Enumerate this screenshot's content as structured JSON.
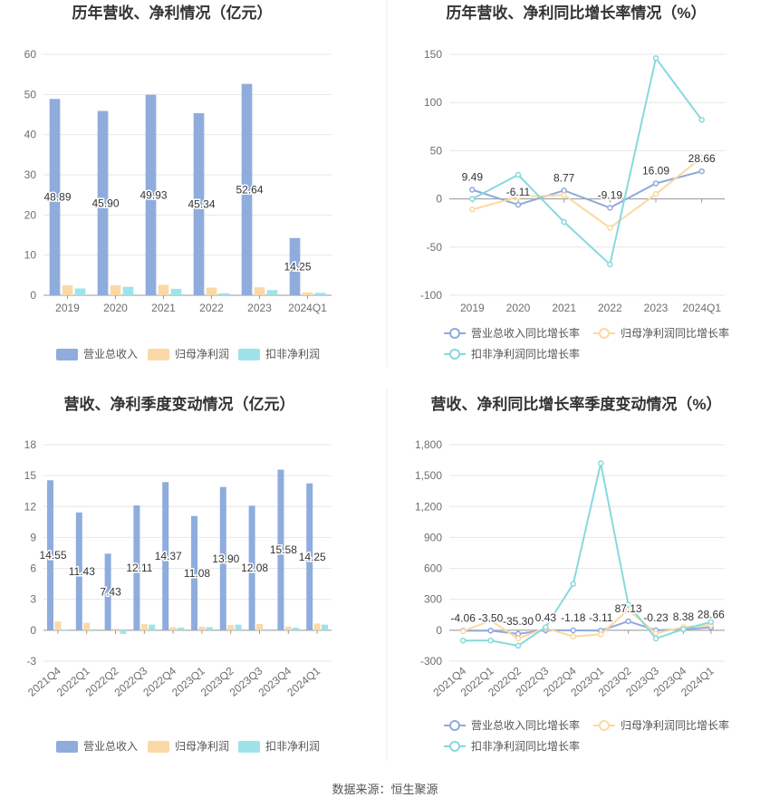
{
  "source": "数据来源：恒生聚源",
  "colors": {
    "blue": "#8eacdc",
    "orange": "#fbd9a6",
    "teal": "#9ee3ea",
    "line_blue": "#8faadc",
    "line_orange": "#fcd8a0",
    "line_teal": "#87d9dd"
  },
  "chart_data": [
    {
      "type": "bar",
      "title": "历年营收、净利情况（亿元）",
      "categories": [
        "2019",
        "2020",
        "2021",
        "2022",
        "2023",
        "2024Q1"
      ],
      "y_ticks": [
        "0",
        "10",
        "20",
        "30",
        "40",
        "50",
        "60"
      ],
      "ylim": [
        0,
        60
      ],
      "series": [
        {
          "name": "营业总收入",
          "color": "#8eacdc",
          "values": [
            48.89,
            45.9,
            49.93,
            45.34,
            52.64,
            14.25
          ],
          "labels": [
            "48.89",
            "45.90",
            "49.93",
            "45.34",
            "52.64",
            "14.25"
          ]
        },
        {
          "name": "归母净利润",
          "color": "#fbd9a6",
          "values": [
            2.5,
            2.5,
            2.6,
            1.9,
            2.0,
            0.7
          ]
        },
        {
          "name": "扣非净利润",
          "color": "#9ee3ea",
          "values": [
            1.7,
            2.1,
            1.6,
            0.5,
            1.3,
            0.6
          ]
        }
      ],
      "legend_position": "bottom"
    },
    {
      "type": "line",
      "title": "历年营收、净利同比增长率情况（%）",
      "categories": [
        "2019",
        "2020",
        "2021",
        "2022",
        "2023",
        "2024Q1"
      ],
      "y_ticks": [
        "-100",
        "-50",
        "0",
        "50",
        "100",
        "150"
      ],
      "ylim": [
        -100,
        150
      ],
      "series": [
        {
          "name": "营业总收入同比增长率",
          "color": "#8faadc",
          "values": [
            9.49,
            -6.11,
            8.77,
            -9.19,
            16.09,
            28.66
          ],
          "labels": [
            "9.49",
            "-6.11",
            "8.77",
            "-9.19",
            "16.09",
            "28.66"
          ]
        },
        {
          "name": "归母净利润同比增长率",
          "color": "#fcd8a0",
          "values": [
            -11,
            2,
            4,
            -30,
            5,
            43
          ]
        },
        {
          "name": "扣非净利润同比增长率",
          "color": "#87d9dd",
          "values": [
            0,
            25,
            -24,
            -68,
            146,
            82
          ]
        }
      ],
      "legend_position": "bottom"
    },
    {
      "type": "bar",
      "title": "营收、净利季度变动情况（亿元）",
      "categories": [
        "2021Q4",
        "2022Q1",
        "2022Q2",
        "2022Q3",
        "2022Q4",
        "2023Q1",
        "2023Q2",
        "2023Q3",
        "2023Q4",
        "2024Q1"
      ],
      "y_ticks": [
        "-3",
        "0",
        "3",
        "6",
        "9",
        "12",
        "15",
        "18"
      ],
      "ylim": [
        -3,
        18
      ],
      "series": [
        {
          "name": "营业总收入",
          "color": "#8eacdc",
          "values": [
            14.55,
            11.43,
            7.43,
            12.11,
            14.37,
            11.08,
            13.9,
            12.08,
            15.58,
            14.25
          ],
          "labels": [
            "14.55",
            "11.43",
            "7.43",
            "12.11",
            "14.37",
            "11.08",
            "13.90",
            "12.08",
            "15.58",
            "14.25"
          ]
        },
        {
          "name": "归母净利润",
          "color": "#fbd9a6",
          "values": [
            0.85,
            0.72,
            0.15,
            0.6,
            0.3,
            0.35,
            0.5,
            0.6,
            0.35,
            0.65
          ]
        },
        {
          "name": "扣非净利润",
          "color": "#9ee3ea",
          "values": [
            0.05,
            0.1,
            -0.35,
            0.55,
            0.25,
            0.3,
            0.55,
            0.1,
            0.25,
            0.55
          ]
        }
      ],
      "legend_position": "bottom"
    },
    {
      "type": "line",
      "title": "营收、净利同比增长率季度变动情况（%）",
      "categories": [
        "2021Q4",
        "2022Q1",
        "2022Q2",
        "2022Q3",
        "2022Q4",
        "2023Q1",
        "2023Q2",
        "2023Q3",
        "2023Q4",
        "2024Q1"
      ],
      "y_ticks": [
        "-300",
        "0",
        "300",
        "600",
        "900",
        "1,200",
        "1,500",
        "1,800"
      ],
      "ylim": [
        -300,
        1800
      ],
      "series": [
        {
          "name": "营业总收入同比增长率",
          "color": "#8faadc",
          "values": [
            -4.06,
            -3.5,
            -35.3,
            0.43,
            -1.18,
            -3.11,
            87.13,
            -0.23,
            8.38,
            28.66
          ],
          "labels": [
            "-4.06",
            "-3.50",
            "-35.30",
            "0.43",
            "-1.18",
            "-3.11",
            "87.13",
            "-0.23",
            "8.38",
            "28.66"
          ]
        },
        {
          "name": "归母净利润同比增长率",
          "color": "#fcd8a0",
          "values": [
            -10,
            95,
            -80,
            20,
            -60,
            -40,
            200,
            -30,
            30,
            50
          ]
        },
        {
          "name": "扣非净利润同比增长率",
          "color": "#87d9dd",
          "values": [
            -100,
            -100,
            -150,
            30,
            450,
            1620,
            250,
            -80,
            10,
            80
          ]
        }
      ],
      "legend_position": "bottom"
    }
  ]
}
